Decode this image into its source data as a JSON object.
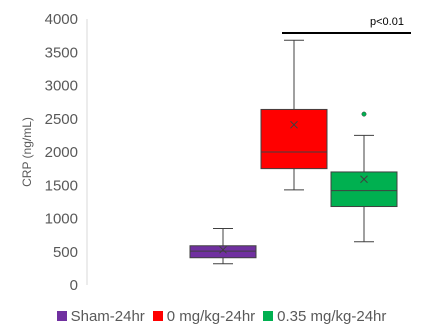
{
  "chart_data": {
    "type": "box",
    "title": "",
    "ylabel": "CRP (ng/mL)",
    "xlabel": "",
    "ylim": [
      0,
      4000
    ],
    "y_ticks": [
      0,
      500,
      1000,
      1500,
      2000,
      2500,
      3000,
      3500,
      4000
    ],
    "grid": false,
    "legend_position": "bottom",
    "series": [
      {
        "name": "Sham-24hr",
        "color": "#7030A0",
        "min": 320,
        "q1": 410,
        "median": 510,
        "q3": 590,
        "max": 850,
        "mean": 530,
        "outliers": []
      },
      {
        "name": "0 mg/kg-24hr",
        "color": "#FF0000",
        "min": 1430,
        "q1": 1750,
        "median": 2000,
        "q3": 2640,
        "max": 3680,
        "mean": 2410,
        "outliers": []
      },
      {
        "name": "0.35 mg/kg-24hr",
        "color": "#00B050",
        "min": 650,
        "q1": 1180,
        "median": 1420,
        "q3": 1700,
        "max": 2250,
        "mean": 1590,
        "outliers": [
          2570
        ]
      }
    ],
    "annotation": {
      "text": "p<0.01",
      "from_series": 1,
      "to_series": 2,
      "y": 3790
    }
  }
}
